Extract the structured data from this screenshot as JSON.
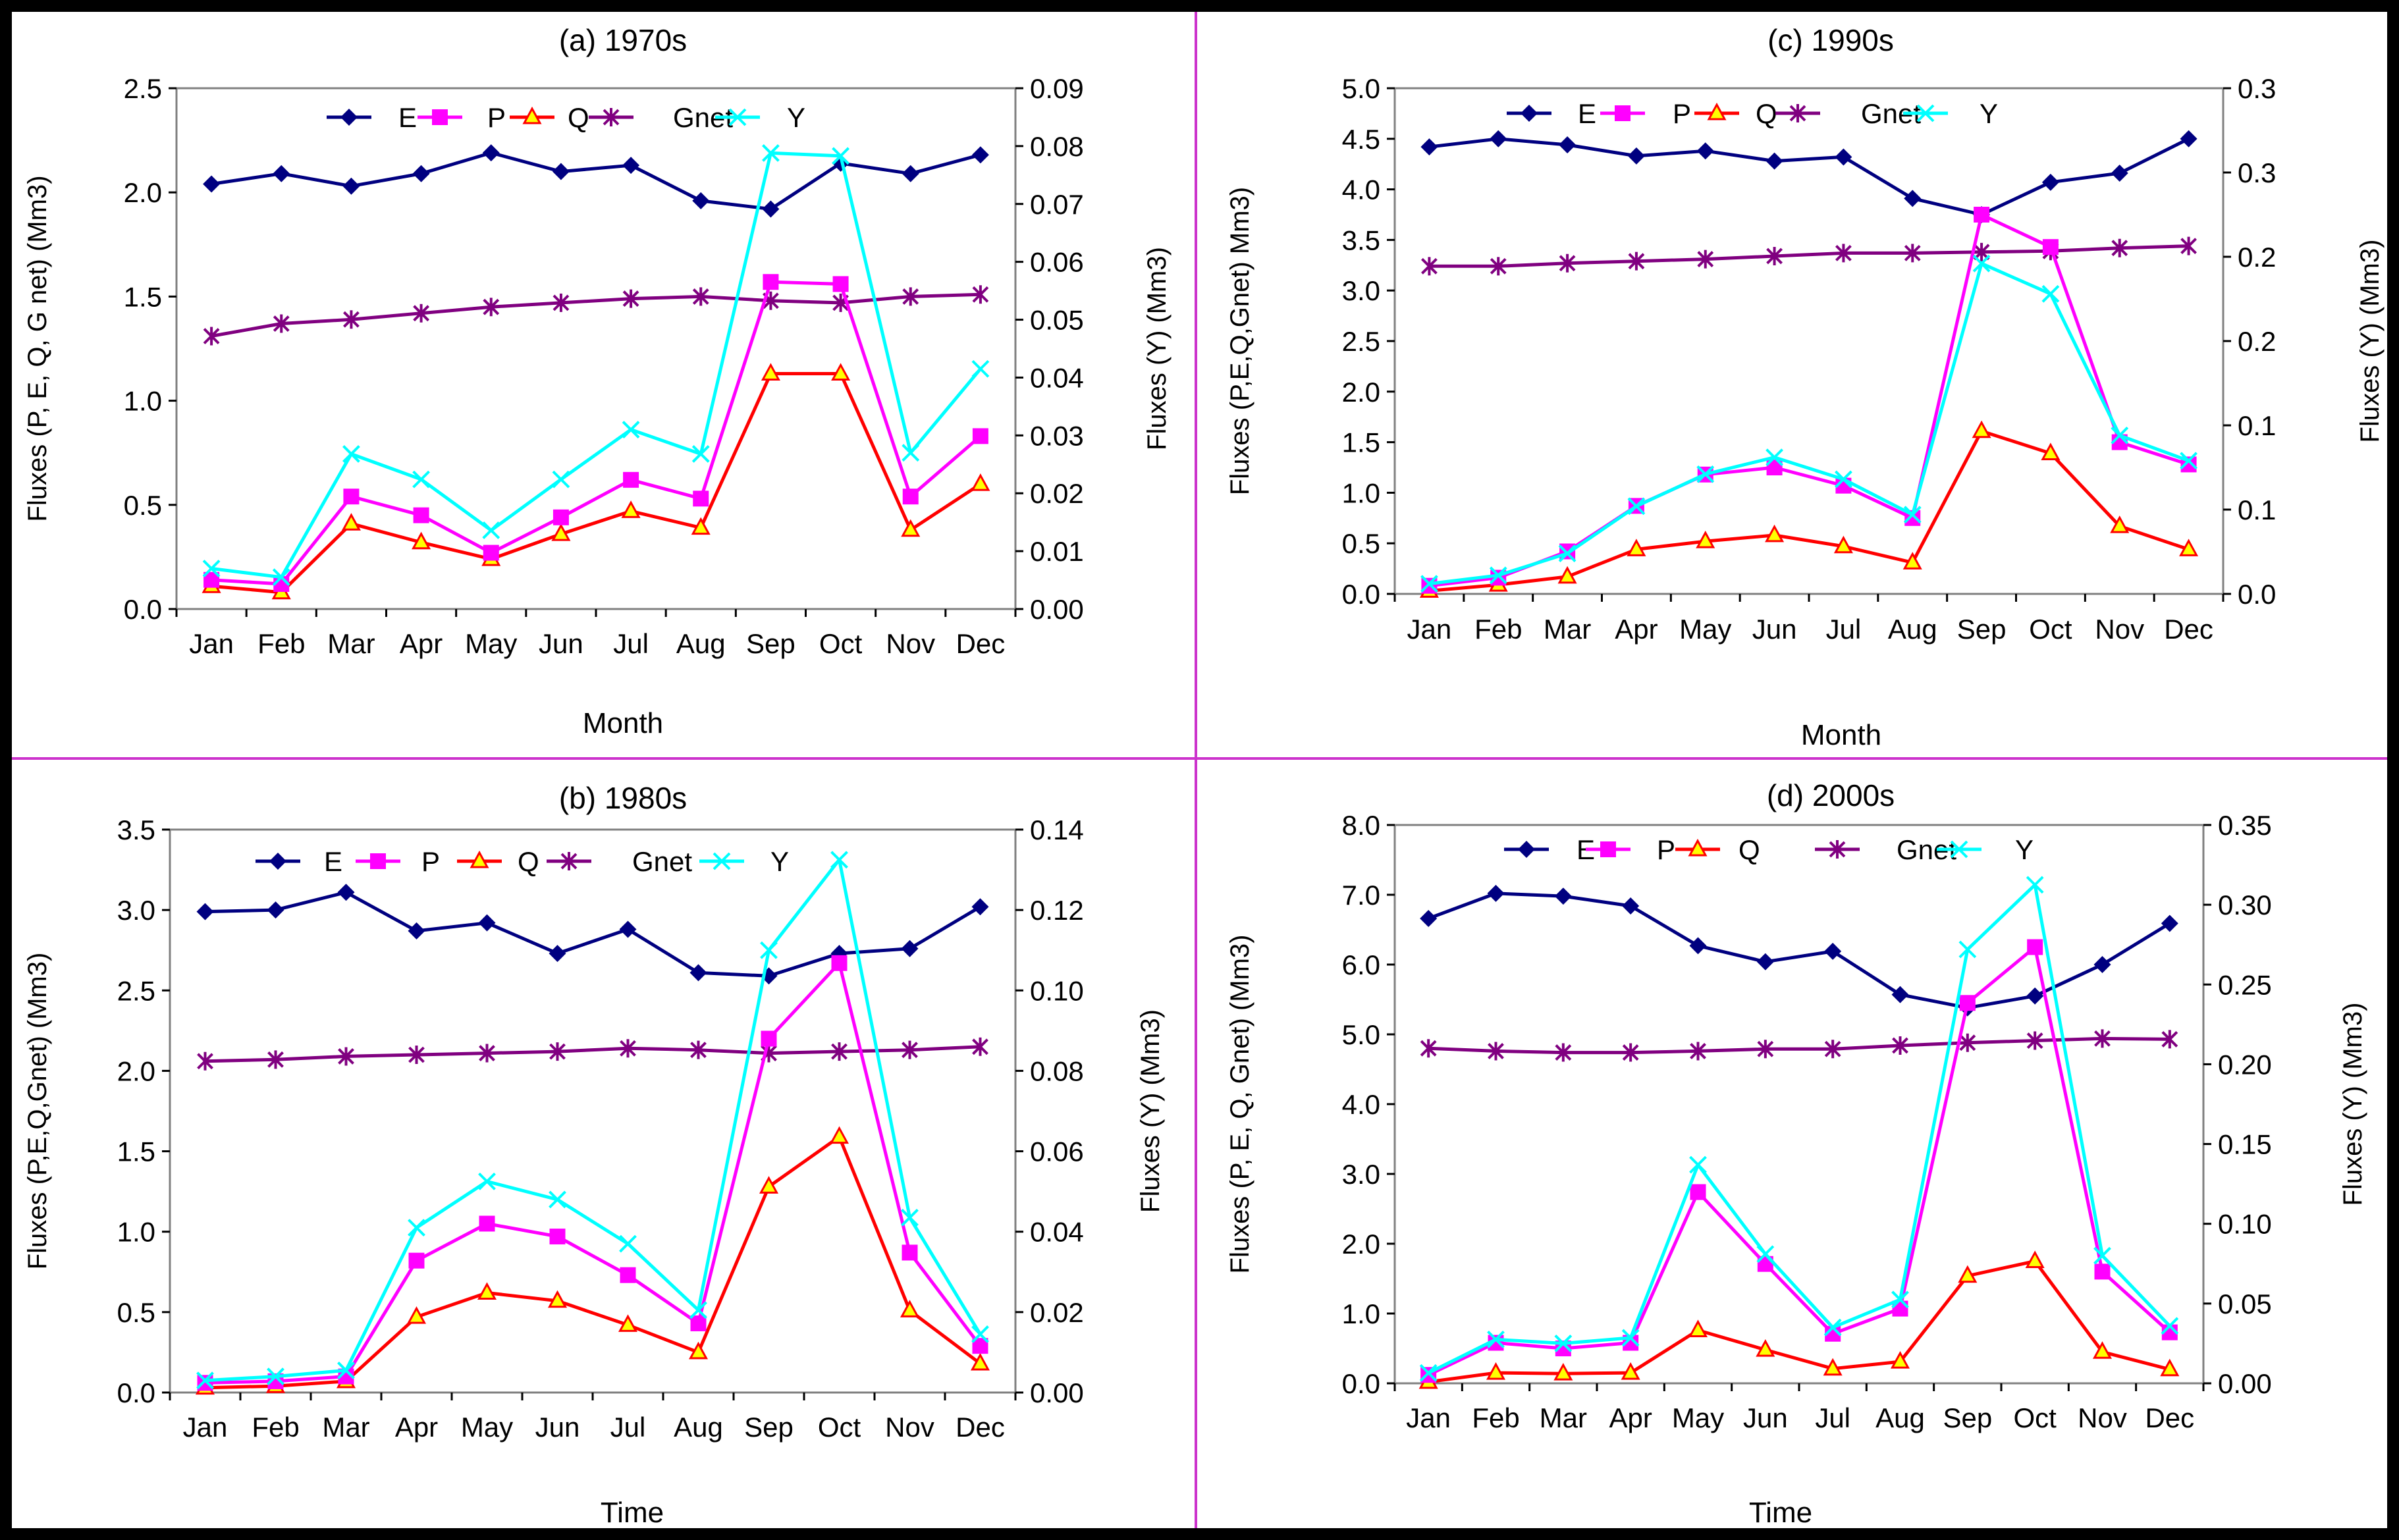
{
  "figure": {
    "colors": {
      "E": "#000080",
      "P": "#FF00FF",
      "Q": "#FF0000",
      "Gnet": "#800080",
      "Y": "#00FFFF",
      "frame": "#000000",
      "divider": "#CC33CC",
      "q_marker_fill": "#FFFF00"
    },
    "series_names": [
      "E",
      "P",
      "Q",
      "Gnet",
      "Y"
    ]
  },
  "chart_data": [
    {
      "type": "line",
      "panel": "top-left",
      "title": "(a) 1970s",
      "xlabel": "Month",
      "ylabel": "Fluxes (P, E, Q, G net) (Mm3)",
      "y2label": "Fluxes (Y) (Mm3)",
      "categories": [
        "Jan",
        "Feb",
        "Mar",
        "Apr",
        "May",
        "Jun",
        "Jul",
        "Aug",
        "Sep",
        "Oct",
        "Nov",
        "Dec"
      ],
      "ylim": [
        0,
        2.5
      ],
      "ytick_step": 0.5,
      "ytick_labels": [
        "0.0",
        "0.5",
        "1.0",
        "1.5",
        "2.0",
        "2.5"
      ],
      "y2lim": [
        0,
        0.09
      ],
      "y2tick_step": 0.01,
      "y2tick_labels": [
        "0.00",
        "0.01",
        "0.02",
        "0.03",
        "0.04",
        "0.05",
        "0.06",
        "0.07",
        "0.08",
        "0.09"
      ],
      "series": [
        {
          "name": "E",
          "axis": "left",
          "values": [
            2.04,
            2.09,
            2.03,
            2.09,
            2.19,
            2.1,
            2.13,
            1.96,
            1.92,
            2.14,
            2.09,
            2.18
          ]
        },
        {
          "name": "P",
          "axis": "left",
          "values": [
            0.14,
            0.12,
            0.54,
            0.45,
            0.27,
            0.44,
            0.62,
            0.53,
            1.57,
            1.56,
            0.54,
            0.83
          ]
        },
        {
          "name": "Q",
          "axis": "left",
          "values": [
            0.11,
            0.08,
            0.41,
            0.32,
            0.24,
            0.36,
            0.47,
            0.39,
            1.13,
            1.13,
            0.38,
            0.6
          ]
        },
        {
          "name": "Gnet",
          "axis": "left",
          "values": [
            1.31,
            1.37,
            1.39,
            1.42,
            1.45,
            1.47,
            1.49,
            1.5,
            1.48,
            1.47,
            1.5,
            1.51
          ]
        },
        {
          "name": "Y",
          "axis": "right",
          "values": [
            0.007,
            0.0055,
            0.0268,
            0.0224,
            0.0136,
            0.0224,
            0.031,
            0.0268,
            0.0788,
            0.0783,
            0.027,
            0.0415
          ]
        }
      ]
    },
    {
      "type": "line",
      "panel": "top-right",
      "title": "(c) 1990s",
      "xlabel": "Month",
      "ylabel": "Fluxes (P,E,Q,Gnet) Mm3)",
      "y2label": "Fluxes (Y) (Mm3)",
      "categories": [
        "Jan",
        "Feb",
        "Mar",
        "Apr",
        "May",
        "Jun",
        "Jul",
        "Aug",
        "Sep",
        "Oct",
        "Nov",
        "Dec"
      ],
      "ylim": [
        0,
        5
      ],
      "ytick_step": 0.5,
      "ytick_labels": [
        "0.0",
        "0.5",
        "1.0",
        "1.5",
        "2.0",
        "2.5",
        "3.0",
        "3.5",
        "4.0",
        "4.5",
        "5.0"
      ],
      "y2lim": [
        0,
        0.3
      ],
      "y2tick_step": 0.05,
      "y2tick_labels": [
        "0.0",
        "0.1",
        "0.1",
        "0.2",
        "0.2",
        "0.3",
        "0.3"
      ],
      "series": [
        {
          "name": "E",
          "axis": "left",
          "values": [
            4.42,
            4.5,
            4.44,
            4.33,
            4.38,
            4.28,
            4.32,
            3.91,
            3.75,
            4.07,
            4.16,
            4.5
          ]
        },
        {
          "name": "P",
          "axis": "left",
          "values": [
            0.08,
            0.16,
            0.42,
            0.87,
            1.18,
            1.25,
            1.07,
            0.75,
            3.75,
            3.43,
            1.5,
            1.28
          ]
        },
        {
          "name": "Q",
          "axis": "left",
          "values": [
            0.03,
            0.09,
            0.17,
            0.44,
            0.52,
            0.58,
            0.47,
            0.31,
            1.61,
            1.39,
            0.67,
            0.44
          ]
        },
        {
          "name": "Gnet",
          "axis": "left",
          "values": [
            3.24,
            3.24,
            3.27,
            3.29,
            3.31,
            3.34,
            3.37,
            3.37,
            3.38,
            3.39,
            3.42,
            3.44
          ]
        },
        {
          "name": "Y",
          "axis": "right",
          "values": [
            0.006,
            0.011,
            0.024,
            0.052,
            0.071,
            0.081,
            0.068,
            0.047,
            0.196,
            0.178,
            0.094,
            0.079
          ]
        }
      ]
    },
    {
      "type": "line",
      "panel": "bottom-left",
      "title": "(b) 1980s",
      "xlabel": "Time",
      "ylabel": "Fluxes (P,E,Q,Gnet) (Mm3)",
      "y2label": "Fluxes (Y) (Mm3)",
      "categories": [
        "Jan",
        "Feb",
        "Mar",
        "Apr",
        "May",
        "Jun",
        "Jul",
        "Aug",
        "Sep",
        "Oct",
        "Nov",
        "Dec"
      ],
      "ylim": [
        0,
        3.5
      ],
      "ytick_step": 0.5,
      "ytick_labels": [
        "0.0",
        "0.5",
        "1.0",
        "1.5",
        "2.0",
        "2.5",
        "3.0",
        "3.5"
      ],
      "y2lim": [
        0,
        0.14
      ],
      "y2tick_step": 0.02,
      "y2tick_labels": [
        "0.00",
        "0.02",
        "0.04",
        "0.06",
        "0.08",
        "0.10",
        "0.12",
        "0.14"
      ],
      "series": [
        {
          "name": "E",
          "axis": "left",
          "values": [
            2.99,
            3.0,
            3.11,
            2.87,
            2.92,
            2.73,
            2.88,
            2.61,
            2.59,
            2.73,
            2.76,
            3.02
          ]
        },
        {
          "name": "P",
          "axis": "left",
          "values": [
            0.06,
            0.07,
            0.1,
            0.82,
            1.05,
            0.97,
            0.73,
            0.43,
            2.2,
            2.67,
            0.87,
            0.29
          ]
        },
        {
          "name": "Q",
          "axis": "left",
          "values": [
            0.03,
            0.04,
            0.07,
            0.47,
            0.62,
            0.57,
            0.42,
            0.25,
            1.28,
            1.59,
            0.51,
            0.18
          ]
        },
        {
          "name": "Gnet",
          "axis": "left",
          "values": [
            2.06,
            2.07,
            2.09,
            2.1,
            2.11,
            2.12,
            2.14,
            2.13,
            2.11,
            2.12,
            2.13,
            2.15
          ]
        },
        {
          "name": "Y",
          "axis": "right",
          "values": [
            0.003,
            0.004,
            0.0055,
            0.041,
            0.0525,
            0.048,
            0.037,
            0.0205,
            0.11,
            0.1325,
            0.0435,
            0.0145
          ]
        }
      ]
    },
    {
      "type": "line",
      "panel": "bottom-right",
      "title": "(d) 2000s",
      "xlabel": "Time",
      "ylabel": "Fluxes (P, E, Q, Gnet) (Mm3)",
      "y2label": "Fluxes (Y) (Mm3)",
      "categories": [
        "Jan",
        "Feb",
        "Mar",
        "Apr",
        "May",
        "Jun",
        "Jul",
        "Aug",
        "Sep",
        "Oct",
        "Nov",
        "Dec"
      ],
      "ylim": [
        0,
        8
      ],
      "ytick_step": 1,
      "ytick_labels": [
        "0.0",
        "1.0",
        "2.0",
        "3.0",
        "4.0",
        "5.0",
        "6.0",
        "7.0",
        "8.0"
      ],
      "y2lim": [
        0,
        0.35
      ],
      "y2tick_step": 0.05,
      "y2tick_labels": [
        "0.00",
        "0.05",
        "0.10",
        "0.15",
        "0.20",
        "0.25",
        "0.30",
        "0.35"
      ],
      "series": [
        {
          "name": "E",
          "axis": "left",
          "values": [
            6.66,
            7.02,
            6.98,
            6.84,
            6.27,
            6.04,
            6.19,
            5.57,
            5.38,
            5.55,
            6.0,
            6.59
          ]
        },
        {
          "name": "P",
          "axis": "left",
          "values": [
            0.12,
            0.58,
            0.5,
            0.58,
            2.74,
            1.71,
            0.71,
            1.07,
            5.45,
            6.25,
            1.6,
            0.73
          ]
        },
        {
          "name": "Q",
          "axis": "left",
          "values": [
            0.02,
            0.15,
            0.14,
            0.15,
            0.76,
            0.48,
            0.21,
            0.31,
            1.54,
            1.75,
            0.45,
            0.2
          ]
        },
        {
          "name": "Gnet",
          "axis": "left",
          "values": [
            4.8,
            4.76,
            4.74,
            4.74,
            4.76,
            4.79,
            4.79,
            4.84,
            4.88,
            4.91,
            4.94,
            4.93
          ]
        },
        {
          "name": "Y",
          "axis": "right",
          "values": [
            0.0065,
            0.0275,
            0.025,
            0.0285,
            0.137,
            0.081,
            0.035,
            0.0525,
            0.272,
            0.3125,
            0.08,
            0.036
          ]
        }
      ]
    }
  ]
}
